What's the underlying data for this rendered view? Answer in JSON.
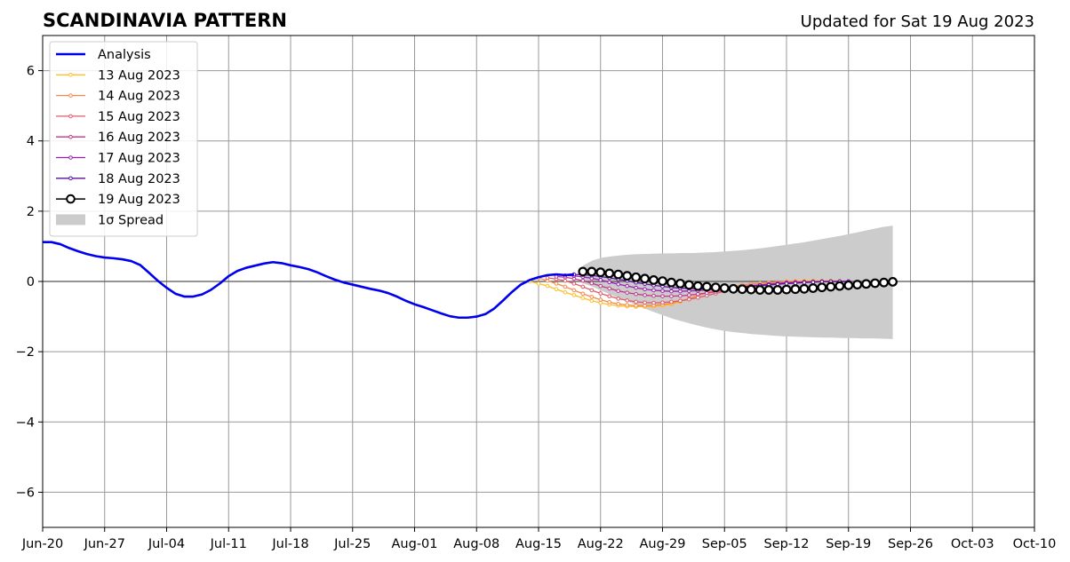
{
  "title": "SCANDINAVIA PATTERN",
  "updated": "Updated for Sat 19 Aug 2023",
  "colors": {
    "analysis": "#0000ee",
    "spread": "#cccccc",
    "grid": "#999999",
    "zero_line": "#555555"
  },
  "chart_data": {
    "type": "line",
    "title": "SCANDINAVIA PATTERN",
    "xlabel": "",
    "ylabel": "",
    "grid": true,
    "legend_position": "upper-left",
    "x_axis": {
      "type": "date",
      "range": [
        "2023-06-20",
        "2023-10-10"
      ],
      "tick_dates": [
        "2023-06-20",
        "2023-06-27",
        "2023-07-04",
        "2023-07-11",
        "2023-07-18",
        "2023-07-25",
        "2023-08-01",
        "2023-08-08",
        "2023-08-15",
        "2023-08-22",
        "2023-08-29",
        "2023-09-05",
        "2023-09-12",
        "2023-09-19",
        "2023-09-26",
        "2023-10-03",
        "2023-10-10"
      ],
      "tick_labels": [
        "Jun-20",
        "Jun-27",
        "Jul-04",
        "Jul-11",
        "Jul-18",
        "Jul-25",
        "Aug-01",
        "Aug-08",
        "Aug-15",
        "Aug-22",
        "Aug-29",
        "Sep-05",
        "Sep-12",
        "Sep-19",
        "Sep-26",
        "Oct-03",
        "Oct-10"
      ]
    },
    "y_axis": {
      "range": [
        -7,
        7
      ],
      "ticks": [
        -6,
        -4,
        -2,
        0,
        2,
        4,
        6
      ],
      "tick_labels": [
        "−6",
        "−4",
        "−2",
        "0",
        "2",
        "4",
        "6"
      ]
    },
    "analysis": {
      "name": "Analysis",
      "color": "#0000ee",
      "x": [
        "2023-06-20",
        "2023-06-21",
        "2023-06-22",
        "2023-06-23",
        "2023-06-24",
        "2023-06-25",
        "2023-06-26",
        "2023-06-27",
        "2023-06-28",
        "2023-06-29",
        "2023-06-30",
        "2023-07-01",
        "2023-07-02",
        "2023-07-03",
        "2023-07-04",
        "2023-07-05",
        "2023-07-06",
        "2023-07-07",
        "2023-07-08",
        "2023-07-09",
        "2023-07-10",
        "2023-07-11",
        "2023-07-12",
        "2023-07-13",
        "2023-07-14",
        "2023-07-15",
        "2023-07-16",
        "2023-07-17",
        "2023-07-18",
        "2023-07-19",
        "2023-07-20",
        "2023-07-21",
        "2023-07-22",
        "2023-07-23",
        "2023-07-24",
        "2023-07-25",
        "2023-07-26",
        "2023-07-27",
        "2023-07-28",
        "2023-07-29",
        "2023-07-30",
        "2023-07-31",
        "2023-08-01",
        "2023-08-02",
        "2023-08-03",
        "2023-08-04",
        "2023-08-05",
        "2023-08-06",
        "2023-08-07",
        "2023-08-08",
        "2023-08-09",
        "2023-08-10",
        "2023-08-11",
        "2023-08-12",
        "2023-08-13",
        "2023-08-14",
        "2023-08-15",
        "2023-08-16",
        "2023-08-17",
        "2023-08-18",
        "2023-08-19"
      ],
      "values": [
        1.12,
        1.12,
        1.06,
        0.95,
        0.86,
        0.78,
        0.72,
        0.68,
        0.66,
        0.63,
        0.58,
        0.47,
        0.25,
        0.02,
        -0.18,
        -0.35,
        -0.43,
        -0.43,
        -0.37,
        -0.24,
        -0.06,
        0.15,
        0.3,
        0.39,
        0.45,
        0.51,
        0.55,
        0.52,
        0.46,
        0.41,
        0.35,
        0.26,
        0.15,
        0.05,
        -0.03,
        -0.09,
        -0.15,
        -0.21,
        -0.26,
        -0.33,
        -0.43,
        -0.55,
        -0.65,
        -0.73,
        -0.82,
        -0.91,
        -0.99,
        -1.03,
        -1.03,
        -1.0,
        -0.93,
        -0.77,
        -0.54,
        -0.3,
        -0.09,
        0.04,
        0.12,
        0.18,
        0.2,
        0.18,
        0.2
      ]
    },
    "forecast_series": [
      {
        "name": "13 Aug 2023",
        "color": "#ffbf2a",
        "x_start": "2023-08-14",
        "values": [
          0.0,
          -0.06,
          -0.13,
          -0.22,
          -0.31,
          -0.39,
          -0.47,
          -0.55,
          -0.61,
          -0.66,
          -0.69,
          -0.71,
          -0.72,
          -0.72,
          -0.71,
          -0.69,
          -0.65,
          -0.58,
          -0.49,
          -0.4,
          -0.32,
          -0.25,
          -0.2,
          -0.15,
          -0.11,
          -0.08,
          -0.06,
          -0.04,
          -0.02,
          0.0,
          0.01,
          0.02,
          0.02,
          0.02,
          0.02,
          0.01
        ]
      },
      {
        "name": "14 Aug 2023",
        "color": "#f58a48",
        "x_start": "2023-08-15",
        "values": [
          0.1,
          0.02,
          -0.06,
          -0.15,
          -0.25,
          -0.35,
          -0.44,
          -0.52,
          -0.59,
          -0.64,
          -0.67,
          -0.69,
          -0.69,
          -0.68,
          -0.66,
          -0.62,
          -0.56,
          -0.49,
          -0.4,
          -0.32,
          -0.25,
          -0.19,
          -0.14,
          -0.1,
          -0.07,
          -0.05,
          -0.03,
          -0.02,
          -0.01,
          0.0,
          0.0,
          0.0,
          0.0,
          0.0,
          0.0,
          0.0
        ]
      },
      {
        "name": "15 Aug 2023",
        "color": "#e05a6b",
        "x_start": "2023-08-16",
        "values": [
          0.1,
          0.07,
          0.02,
          -0.06,
          -0.15,
          -0.25,
          -0.34,
          -0.42,
          -0.49,
          -0.54,
          -0.58,
          -0.6,
          -0.61,
          -0.6,
          -0.58,
          -0.55,
          -0.51,
          -0.46,
          -0.4,
          -0.34,
          -0.28,
          -0.23,
          -0.18,
          -0.14,
          -0.1,
          -0.07,
          -0.05,
          -0.03,
          -0.02,
          -0.01,
          0.0,
          0.0,
          0.0,
          0.0,
          0.0
        ]
      },
      {
        "name": "16 Aug 2023",
        "color": "#c1378a",
        "x_start": "2023-08-17",
        "values": [
          0.14,
          0.12,
          0.08,
          0.02,
          -0.05,
          -0.13,
          -0.2,
          -0.27,
          -0.32,
          -0.36,
          -0.39,
          -0.41,
          -0.42,
          -0.42,
          -0.41,
          -0.39,
          -0.36,
          -0.33,
          -0.29,
          -0.25,
          -0.21,
          -0.17,
          -0.14,
          -0.11,
          -0.08,
          -0.06,
          -0.04,
          -0.03,
          -0.02,
          -0.01,
          0.0,
          0.0,
          0.0,
          0.0
        ]
      },
      {
        "name": "17 Aug 2023",
        "color": "#9a1fb0",
        "x_start": "2023-08-18",
        "values": [
          0.17,
          0.16,
          0.13,
          0.09,
          0.04,
          -0.02,
          -0.08,
          -0.13,
          -0.18,
          -0.22,
          -0.25,
          -0.27,
          -0.28,
          -0.28,
          -0.27,
          -0.26,
          -0.24,
          -0.22,
          -0.2,
          -0.17,
          -0.15,
          -0.12,
          -0.1,
          -0.08,
          -0.06,
          -0.04,
          -0.03,
          -0.02,
          -0.01,
          0.0,
          0.0,
          0.0,
          0.0
        ]
      },
      {
        "name": "18 Aug 2023",
        "color": "#5b0f9e",
        "x_start": "2023-08-19",
        "values": [
          0.2,
          0.19,
          0.17,
          0.14,
          0.1,
          0.06,
          0.02,
          -0.03,
          -0.07,
          -0.11,
          -0.14,
          -0.17,
          -0.19,
          -0.2,
          -0.21,
          -0.21,
          -0.2,
          -0.19,
          -0.18,
          -0.16,
          -0.14,
          -0.12,
          -0.1,
          -0.08,
          -0.06,
          -0.05,
          -0.03,
          -0.02,
          -0.01,
          0.0,
          0.0,
          0.0
        ]
      },
      {
        "name": "19 Aug 2023",
        "color": "#000000",
        "x_start": "2023-08-20",
        "values": [
          0.28,
          0.28,
          0.26,
          0.23,
          0.2,
          0.16,
          0.12,
          0.08,
          0.04,
          0.01,
          -0.03,
          -0.06,
          -0.1,
          -0.13,
          -0.15,
          -0.17,
          -0.19,
          -0.21,
          -0.22,
          -0.23,
          -0.24,
          -0.24,
          -0.24,
          -0.23,
          -0.22,
          -0.21,
          -0.19,
          -0.17,
          -0.15,
          -0.13,
          -0.11,
          -0.09,
          -0.07,
          -0.05,
          -0.03,
          -0.01
        ]
      }
    ],
    "spread": {
      "name": "1σ Spread",
      "color": "#cccccc",
      "x_start": "2023-08-20",
      "x_end": "2023-09-24",
      "upper": [
        0.45,
        0.6,
        0.68,
        0.72,
        0.75,
        0.77,
        0.78,
        0.79,
        0.8,
        0.8,
        0.81,
        0.81,
        0.82,
        0.83,
        0.85,
        0.87,
        0.89,
        0.92,
        0.95,
        0.99,
        1.03,
        1.07,
        1.11,
        1.16,
        1.21,
        1.26,
        1.31,
        1.37,
        1.43,
        1.49,
        1.55,
        1.59
      ],
      "lower": [
        -0.05,
        -0.15,
        -0.28,
        -0.4,
        -0.52,
        -0.63,
        -0.75,
        -0.86,
        -0.96,
        -1.06,
        -1.14,
        -1.22,
        -1.29,
        -1.35,
        -1.4,
        -1.44,
        -1.47,
        -1.5,
        -1.52,
        -1.54,
        -1.56,
        -1.57,
        -1.58,
        -1.59,
        -1.6,
        -1.6,
        -1.61,
        -1.61,
        -1.62,
        -1.62,
        -1.63,
        -1.64
      ]
    }
  },
  "legend": {
    "analysis_label": "Analysis",
    "spread_label": "1σ Spread"
  }
}
